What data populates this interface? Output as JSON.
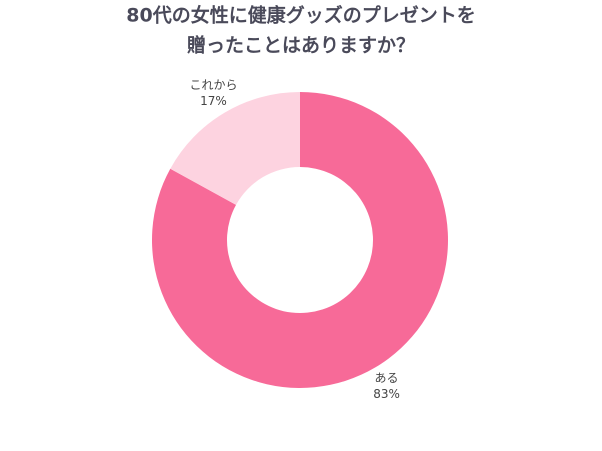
{
  "chart_data": {
    "type": "donut",
    "title": [
      "80代の女性に健康グッズのプレゼントを",
      "贈ったことはありますか？"
    ],
    "categories": [
      "ある",
      "これから"
    ],
    "values": [
      83,
      17
    ],
    "value_labels": [
      "83%",
      "17%"
    ],
    "colors": [
      "#f76a98",
      "#fdd3e0"
    ]
  }
}
